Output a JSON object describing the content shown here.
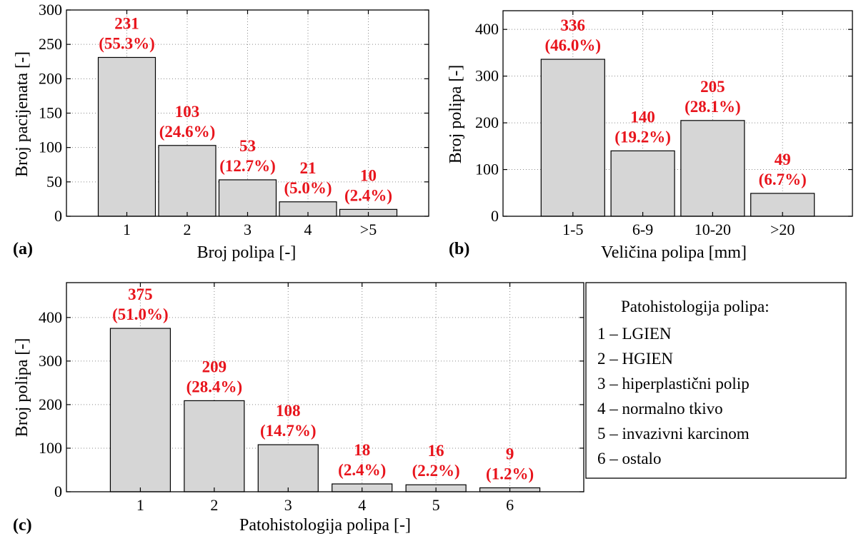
{
  "figure": {
    "chart_data": [
      {
        "type": "bar",
        "panel": "(a)",
        "xlabel": "Broj polipa [-]",
        "ylabel": "Broj pacijenata [-]",
        "categories": [
          "1",
          "2",
          "3",
          "4",
          ">5"
        ],
        "values": [
          231,
          103,
          53,
          21,
          10
        ],
        "value_labels": [
          "231",
          "103",
          "53",
          "21",
          "10"
        ],
        "percent_labels": [
          "(55.3%)",
          "(24.6%)",
          "(12.7%)",
          "(5.0%)",
          "(2.4%)"
        ],
        "ylim": [
          0,
          300
        ],
        "yticks": [
          0,
          50,
          100,
          150,
          200,
          250,
          300
        ],
        "ytick_labels": [
          "0",
          "50",
          "100",
          "150",
          "200",
          "250",
          "300"
        ],
        "grid": true
      },
      {
        "type": "bar",
        "panel": "(b)",
        "xlabel": "Veličina polipa [mm]",
        "ylabel": "Broj polipa [-]",
        "categories": [
          "1-5",
          "6-9",
          "10-20",
          ">20"
        ],
        "values": [
          336,
          140,
          205,
          49
        ],
        "value_labels": [
          "336",
          "140",
          "205",
          "49"
        ],
        "percent_labels": [
          "(46.0%)",
          "(19.2%)",
          "(28.1%)",
          "(6.7%)"
        ],
        "ylim": [
          0,
          440
        ],
        "yticks": [
          0,
          100,
          200,
          300,
          400
        ],
        "ytick_labels": [
          "0",
          "100",
          "200",
          "300",
          "400"
        ],
        "grid": true
      },
      {
        "type": "bar",
        "panel": "(c)",
        "xlabel": "Patohistologija polipa [-]",
        "ylabel": "Broj polipa [-]",
        "categories": [
          "1",
          "2",
          "3",
          "4",
          "5",
          "6"
        ],
        "values": [
          375,
          209,
          108,
          18,
          16,
          9
        ],
        "value_labels": [
          "375",
          "209",
          "108",
          "18",
          "16",
          "9"
        ],
        "percent_labels": [
          "(51.0%)",
          "(28.4%)",
          "(14.7%)",
          "(2.4%)",
          "(2.2%)",
          "(1.2%)"
        ],
        "ylim": [
          0,
          480
        ],
        "yticks": [
          0,
          100,
          200,
          300,
          400
        ],
        "ytick_labels": [
          "0",
          "100",
          "200",
          "300",
          "400"
        ],
        "grid": true
      }
    ],
    "legend": {
      "title": "Patohistologija polipa:",
      "items": [
        "1 – LGIEN",
        "2 – HGIEN",
        "3 – hiperplastični polip",
        "4 – normalno tkivo",
        "5 – invazivni karcinom",
        "6 – ostalo"
      ]
    },
    "colors": {
      "bar_fill": "#d6d6d6",
      "bar_stroke": "#000000",
      "data_label": "#e8141c",
      "grid": "#8a8a8a"
    }
  }
}
